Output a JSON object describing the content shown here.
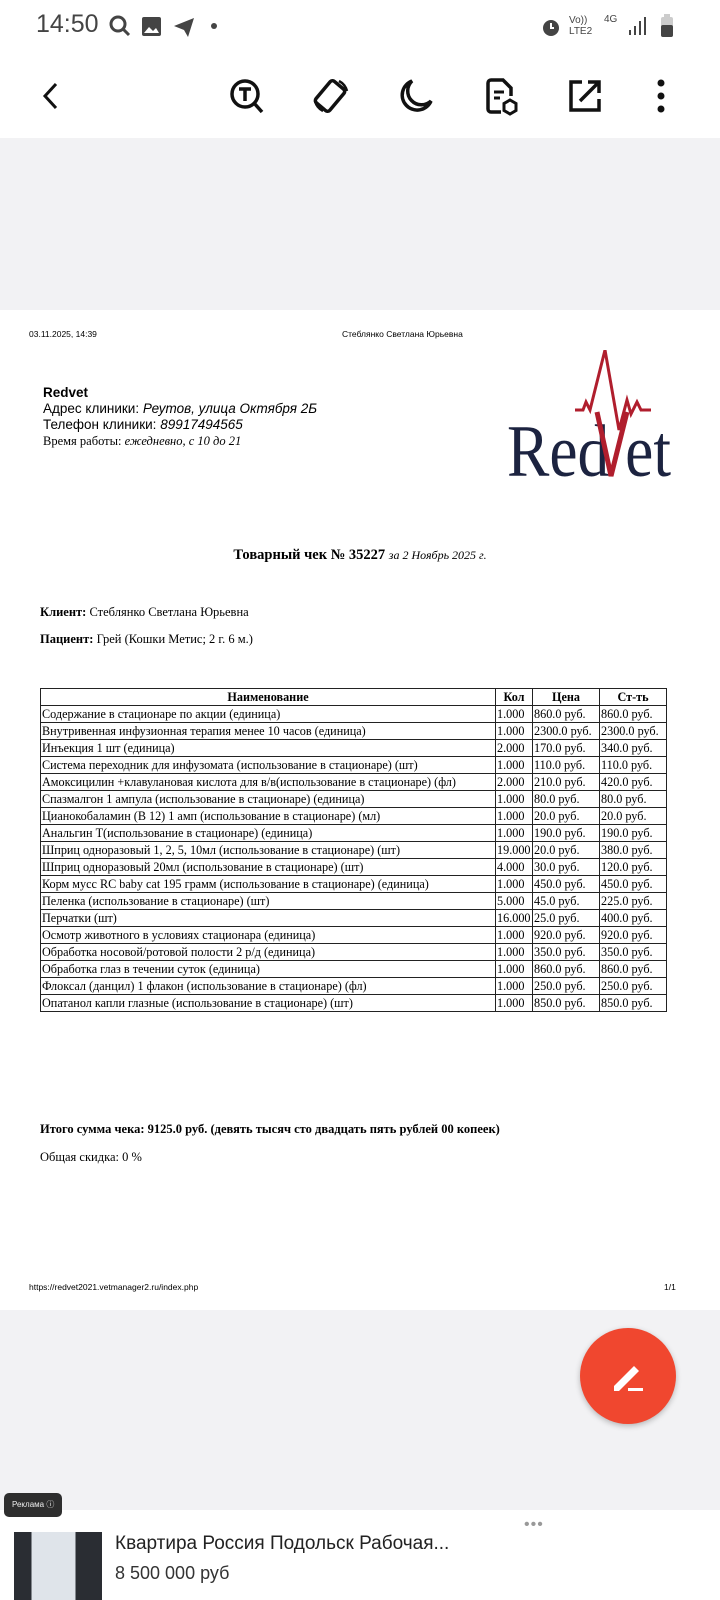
{
  "status": {
    "time": "14:50",
    "volte": "Vo)) LTE2",
    "net": "4G"
  },
  "toolbar": {
    "icons": [
      "back-icon",
      "text-search-icon",
      "rotate-icon",
      "night-mode-icon",
      "document-settings-icon",
      "open-external-icon",
      "more-icon"
    ]
  },
  "doc": {
    "print_date": "03.11.2025, 14:39",
    "print_name": "Стеблянко Светлана Юрьевна",
    "clinic_name": "Redvet",
    "addr_label": "Адрес клиники: ",
    "addr": "Реутов, улица Октября 2Б",
    "phone_label": "Телефон клиники: ",
    "phone": "89917494565",
    "hours_label": "Время работы: ",
    "hours": "ежедневно, с 10 до 21",
    "logo_text": "RedVet",
    "title": "Товарный чек № 35227",
    "title_date": "за 2 Ноябрь 2025 г.",
    "client_label": "Клиент:",
    "client": "Стеблянко Светлана Юрьевна",
    "patient_label": "Пациент:",
    "patient": "Грей (Кошки Метис; 2 г. 6 м.)",
    "columns": [
      "Наименование",
      "Кол",
      "Цена",
      "Ст-ть"
    ],
    "rows": [
      [
        "Содержание в стационаре по акции (единица)",
        "1.000",
        "860.0 руб.",
        "860.0 руб."
      ],
      [
        "Внутривенная инфузионная терапия менее 10 часов (единица)",
        "1.000",
        "2300.0 руб.",
        "2300.0 руб."
      ],
      [
        "Инъекция 1 шт (единица)",
        "2.000",
        "170.0 руб.",
        "340.0 руб."
      ],
      [
        "Система переходник для инфузомата (использование в стационаре) (шт)",
        "1.000",
        "110.0 руб.",
        "110.0 руб."
      ],
      [
        "Амоксицилин +клавулановая кислота для в/в(использование в стационаре) (фл)",
        "2.000",
        "210.0 руб.",
        "420.0 руб."
      ],
      [
        "Спазмалгон 1 ампула (использование в стационаре) (единица)",
        "1.000",
        "80.0 руб.",
        "80.0 руб."
      ],
      [
        "Цианокобаламин (В 12) 1 амп (использование в стационаре) (мл)",
        "1.000",
        "20.0 руб.",
        "20.0 руб."
      ],
      [
        "Анальгин Т(использование в стационаре) (единица)",
        "1.000",
        "190.0 руб.",
        "190.0 руб."
      ],
      [
        "Шприц одноразовый 1, 2, 5, 10мл (использование в стационаре) (шт)",
        "19.000",
        "20.0 руб.",
        "380.0 руб."
      ],
      [
        "Шприц одноразовый 20мл (использование в стационаре) (шт)",
        "4.000",
        "30.0 руб.",
        "120.0 руб."
      ],
      [
        "Корм мусс RC baby cat 195 грамм (использование в стационаре) (единица)",
        "1.000",
        "450.0 руб.",
        "450.0 руб."
      ],
      [
        "Пеленка (использование в стационаре) (шт)",
        "5.000",
        "45.0 руб.",
        "225.0 руб."
      ],
      [
        "Перчатки (шт)",
        "16.000",
        "25.0 руб.",
        "400.0 руб."
      ],
      [
        "Осмотр животного в условиях стационара (единица)",
        "1.000",
        "920.0 руб.",
        "920.0 руб."
      ],
      [
        "Обработка носовой/ротовой полости 2 р/д (единица)",
        "1.000",
        "350.0 руб.",
        "350.0 руб."
      ],
      [
        "Обработка глаз в течении суток (единица)",
        "1.000",
        "860.0 руб.",
        "860.0 руб."
      ],
      [
        "Флоксал (данцил) 1 флакон (использование в стационаре) (фл)",
        "1.000",
        "250.0 руб.",
        "250.0 руб."
      ],
      [
        "Опатанол капли глазные (использование в стационаре) (шт)",
        "1.000",
        "850.0 руб.",
        "850.0 руб."
      ]
    ],
    "total": "Итого сумма чека: 9125.0 руб. (девять тысяч сто двадцать пять рублей 00 копеек)",
    "discount": "Общая скидка: 0 %",
    "footer_url": "https://redvet2021.vetmanager2.ru/index.php",
    "footer_page": "1/1"
  },
  "fab": {
    "icon": "edit-icon",
    "color": "#f0472f"
  },
  "ad": {
    "badge": "Реклама",
    "title": "Квартира Россия Подольск Рабочая...",
    "price": "8 500 000 руб"
  }
}
